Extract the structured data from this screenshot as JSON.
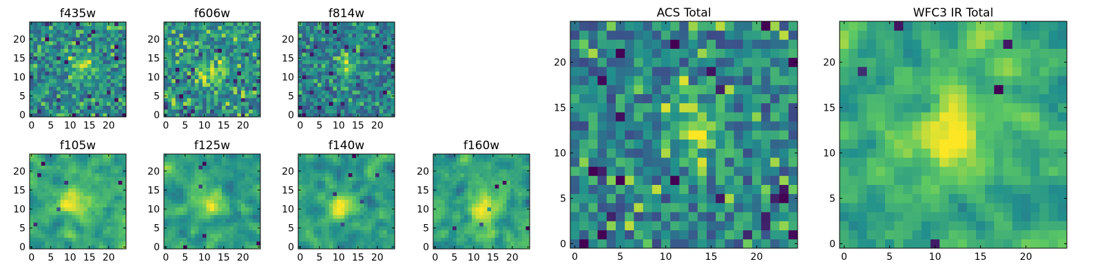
{
  "figure": {
    "background": "#ffffff"
  },
  "colormap": {
    "name": "viridis",
    "stops": [
      "#440154",
      "#3b528b",
      "#21908d",
      "#5dc963",
      "#fde725"
    ]
  },
  "chart_data": [
    {
      "type": "heatmap",
      "title": "f435w",
      "grid_size": [
        25,
        25
      ],
      "pixel_range": [
        -0.5,
        24.5
      ],
      "xticks": [
        0,
        5,
        10,
        15,
        20
      ],
      "yticks": [
        0,
        5,
        10,
        15,
        20
      ],
      "hotspot": [
        13,
        13
      ],
      "seed": 11,
      "smooth": 0,
      "contrast": 1.0
    },
    {
      "type": "heatmap",
      "title": "f606w",
      "grid_size": [
        25,
        25
      ],
      "pixel_range": [
        -0.5,
        24.5
      ],
      "xticks": [
        0,
        5,
        10,
        15,
        20
      ],
      "yticks": [
        0,
        5,
        10,
        15,
        20
      ],
      "hotspot": [
        13,
        12
      ],
      "seed": 23,
      "smooth": 0,
      "contrast": 1.0
    },
    {
      "type": "heatmap",
      "title": "f814w",
      "grid_size": [
        25,
        25
      ],
      "pixel_range": [
        -0.5,
        24.5
      ],
      "xticks": [
        0,
        5,
        10,
        15,
        20
      ],
      "yticks": [
        0,
        5,
        10,
        15,
        20
      ],
      "hotspot": [
        13,
        13
      ],
      "seed": 37,
      "smooth": 0,
      "contrast": 1.0
    },
    {
      "type": "heatmap",
      "title": "f105w",
      "grid_size": [
        25,
        25
      ],
      "pixel_range": [
        -0.5,
        24.5
      ],
      "xticks": [
        0,
        5,
        10,
        15,
        20
      ],
      "yticks": [
        0,
        5,
        10,
        15,
        20
      ],
      "hotspot": [
        11,
        12
      ],
      "seed": 41,
      "smooth": 1,
      "contrast": 1.0
    },
    {
      "type": "heatmap",
      "title": "f125w",
      "grid_size": [
        25,
        25
      ],
      "pixel_range": [
        -0.5,
        24.5
      ],
      "xticks": [
        0,
        5,
        10,
        15,
        20
      ],
      "yticks": [
        0,
        5,
        10,
        15,
        20
      ],
      "hotspot": [
        12,
        12
      ],
      "seed": 53,
      "smooth": 1,
      "contrast": 1.0
    },
    {
      "type": "heatmap",
      "title": "f140w",
      "grid_size": [
        25,
        25
      ],
      "pixel_range": [
        -0.5,
        24.5
      ],
      "xticks": [
        0,
        5,
        10,
        15,
        20
      ],
      "yticks": [
        0,
        5,
        10,
        15,
        20
      ],
      "hotspot": [
        11,
        11
      ],
      "seed": 67,
      "smooth": 1,
      "contrast": 1.0
    },
    {
      "type": "heatmap",
      "title": "f160w",
      "grid_size": [
        25,
        25
      ],
      "pixel_range": [
        -0.5,
        24.5
      ],
      "xticks": [
        0,
        5,
        10,
        15,
        20
      ],
      "yticks": [
        0,
        5,
        10,
        15,
        20
      ],
      "hotspot": [
        13,
        10
      ],
      "seed": 79,
      "smooth": 1,
      "contrast": 1.0
    },
    {
      "type": "heatmap",
      "title": "ACS Total",
      "grid_size": [
        25,
        25
      ],
      "pixel_range": [
        -0.5,
        24.5
      ],
      "xticks": [
        0,
        5,
        10,
        15,
        20
      ],
      "yticks": [
        0,
        5,
        10,
        15,
        20
      ],
      "hotspot": [
        13,
        13
      ],
      "seed": 97,
      "smooth": 0,
      "contrast": 1.2
    },
    {
      "type": "heatmap",
      "title": "WFC3 IR Total",
      "grid_size": [
        25,
        25
      ],
      "pixel_range": [
        -0.5,
        24.5
      ],
      "xticks": [
        0,
        5,
        10,
        15,
        20
      ],
      "yticks": [
        0,
        5,
        10,
        15,
        20
      ],
      "hotspot": [
        12,
        12
      ],
      "seed": 113,
      "smooth": 1,
      "contrast": 1.2
    }
  ]
}
